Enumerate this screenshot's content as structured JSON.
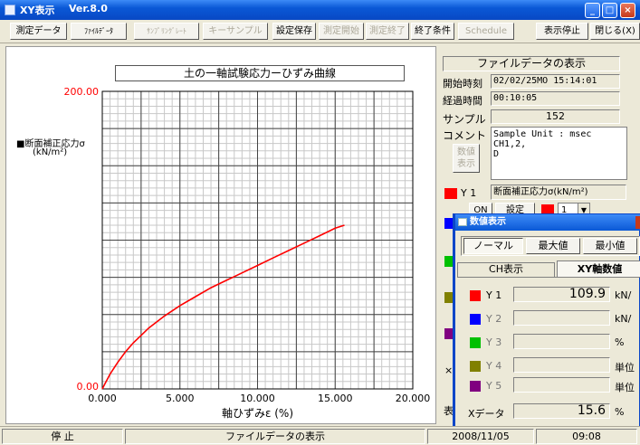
{
  "window": {
    "title": "XY表示",
    "version": "Ver.8.0"
  },
  "toolbar": {
    "buttons": [
      "測定データ",
      "ﾌｧｲﾙﾃﾞｰﾀ",
      "ｻﾝﾌﾟﾘﾝｸﾞﾚｰﾄ",
      "キーサンプル",
      "設定保存",
      "測定開始",
      "測定終了",
      "終了条件",
      "Schedule",
      "表示停止",
      "閉じる(X)"
    ]
  },
  "right_panel": {
    "header": "ファイルデータの表示",
    "start_label": "開始時刻",
    "start_value": "02/02/25MO 15:14:01",
    "elapsed_label": "経過時間",
    "elapsed_value": "00:10:05",
    "sample_label": "サンプル",
    "sample_value": "152",
    "comment_label": "コメント",
    "comment_lines": [
      "Sample Unit : msec",
      "CH1,2,",
      "D"
    ],
    "numeric_button_1": "数値",
    "numeric_button_2": "表示",
    "y1_label": "Y 1",
    "y1_name": "断面補正応力σ(kN/m²)",
    "on_button": "ON",
    "settings_button": "設定",
    "select_value": "1",
    "partial_x_label": "×",
    "partial_table_label": "表"
  },
  "popup": {
    "title": "数値表示",
    "mode_tabs": [
      "ノーマル",
      "最大値",
      "最小値"
    ],
    "tabs": [
      "CH表示",
      "XY軸数値"
    ],
    "rows": [
      {
        "label": "Y 1",
        "value": "109.9",
        "unit": "kN/",
        "color": "#ff0000"
      },
      {
        "label": "Y 2",
        "value": "",
        "unit": "kN/",
        "color": "#0000ff"
      },
      {
        "label": "Y 3",
        "value": "",
        "unit": "%",
        "color": "#00c000"
      },
      {
        "label": "Y 4",
        "value": "",
        "unit": "単位",
        "color": "#808000"
      },
      {
        "label": "Y 5",
        "value": "",
        "unit": "単位",
        "color": "#800080"
      }
    ],
    "x_label": "Xデータ",
    "x_value": "15.6",
    "x_unit": "%"
  },
  "statusbar": {
    "state": "停 止",
    "mode": "ファイルデータの表示",
    "date": "2008/11/05",
    "time": "09:08"
  },
  "chart_data": {
    "type": "line",
    "title": "土の一軸試験応力ーひずみ曲線",
    "xlabel": "軸ひずみε (%)",
    "ylabel": "断面補正応力σ(kN/m²)",
    "legend_label": "■断面補正応力σ",
    "legend_unit": "(kN/m²)",
    "xlim": [
      0,
      20
    ],
    "ylim": [
      0,
      200
    ],
    "x_ticks": [
      "0.000",
      "5.000",
      "10.000",
      "15.000",
      "20.000"
    ],
    "y_ticks": [
      "200.00",
      "0.00"
    ],
    "series": [
      {
        "name": "断面補正応力σ",
        "color": "#ff0000",
        "x": [
          0.0,
          0.2,
          0.5,
          1.0,
          1.5,
          2.0,
          2.5,
          3.0,
          3.5,
          4.0,
          5.0,
          6.0,
          7.0,
          8.0,
          9.0,
          10.0,
          11.0,
          12.0,
          13.0,
          14.0,
          15.0,
          15.6
        ],
        "y": [
          0.0,
          4,
          10,
          18,
          25,
          31,
          36,
          41,
          45,
          49,
          56,
          62,
          68,
          73,
          78,
          83,
          88,
          93,
          98,
          103,
          108,
          110
        ]
      }
    ]
  }
}
